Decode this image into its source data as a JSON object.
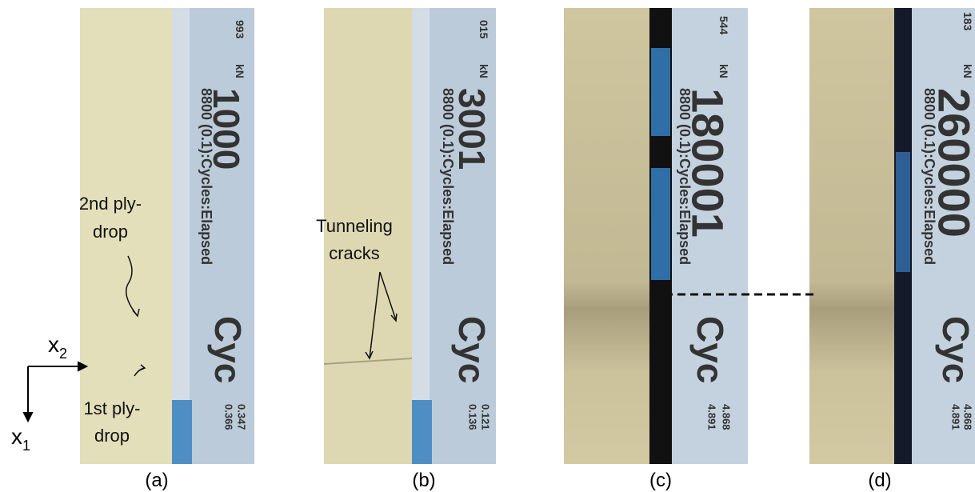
{
  "panels": [
    {
      "label": "(a)",
      "screen": {
        "counter": "993",
        "unit": "kN",
        "cycles": "1000",
        "channel": "8800 (0.1):Cycles:Elapsed",
        "short": "Cyc",
        "reading_1": "0.347",
        "reading_2": "0.366"
      }
    },
    {
      "label": "(b)",
      "screen": {
        "counter": "015",
        "unit": "kN",
        "cycles": "3001",
        "channel": "8800 (0.1):Cycles:Elapsed",
        "short": "Cyc",
        "reading_1": "0.121",
        "reading_2": "0.136"
      }
    },
    {
      "label": "(c)",
      "screen": {
        "counter": "544",
        "unit": "kN",
        "cycles": "180001",
        "channel": "8800 (0.1):Cycles:Elapsed",
        "short": "Cyc",
        "reading_1": "4.868",
        "reading_2": "4.891"
      }
    },
    {
      "label": "(d)",
      "screen": {
        "counter": "183",
        "unit": "kN",
        "cycles": "260000",
        "channel": "8800 (0.1):Cycles:Elapsed",
        "short": "Cyc",
        "reading_1": "4.868",
        "reading_2": "4.891"
      }
    }
  ],
  "annotations": {
    "second_ply_drop": [
      "2nd ply-",
      "drop"
    ],
    "first_ply_drop": [
      "1st ply-",
      "drop"
    ],
    "tunneling_cracks": [
      "Tunneling",
      "cracks"
    ]
  },
  "axes": {
    "x2": {
      "symbol": "x",
      "subscript": "2"
    },
    "x1": {
      "symbol": "x",
      "subscript": "1"
    }
  }
}
